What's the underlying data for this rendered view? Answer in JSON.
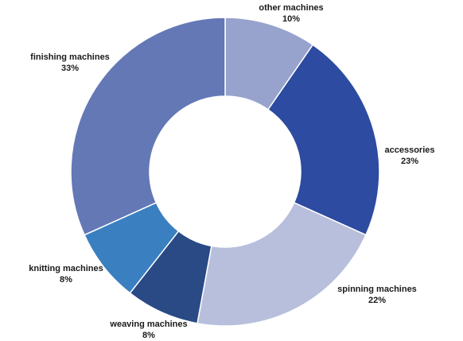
{
  "chart_data": {
    "type": "pie",
    "donut": true,
    "title": "",
    "slices": [
      {
        "label": "other machines",
        "value": 10,
        "value_label": "10%",
        "color": "#97a3cd"
      },
      {
        "label": "accessories",
        "value": 23,
        "value_label": "23%",
        "color": "#2d4ba0"
      },
      {
        "label": "spinning machines",
        "value": 22,
        "value_label": "22%",
        "color": "#b8bfdc"
      },
      {
        "label": "weaving machines",
        "value": 8,
        "value_label": "8%",
        "color": "#2a4a85"
      },
      {
        "label": "knitting machines",
        "value": 8,
        "value_label": "8%",
        "color": "#3a7fc0"
      },
      {
        "label": "finishing machines",
        "value": 33,
        "value_label": "33%",
        "color": "#6478b5"
      }
    ]
  }
}
